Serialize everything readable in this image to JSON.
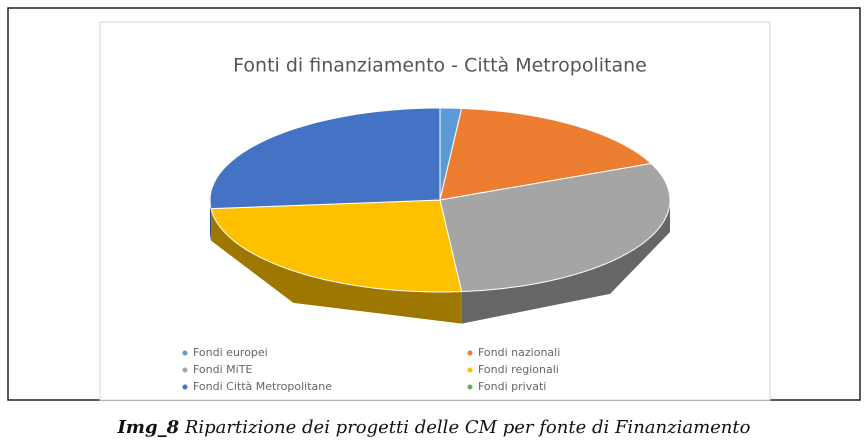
{
  "chart_data": {
    "type": "pie",
    "title": "Fonti di finanziamento - Città Metropolitane",
    "categories": [
      "Fondi europei",
      "Fondi nazionali",
      "Fondi MiTE",
      "Fondi regionali",
      "Fondi Città Metropolitane",
      "Fondi privati"
    ],
    "values": [
      1.5,
      17,
      30,
      25,
      26.5,
      0
    ],
    "colors": [
      "#5B9BD5",
      "#ED7D31",
      "#A5A5A5",
      "#FFC000",
      "#4472C4",
      "#70AD47"
    ],
    "legend": "bottom"
  },
  "caption": {
    "label": "Img_8",
    "text": " Ripartizione dei progetti delle CM per fonte di Finanziamento"
  }
}
